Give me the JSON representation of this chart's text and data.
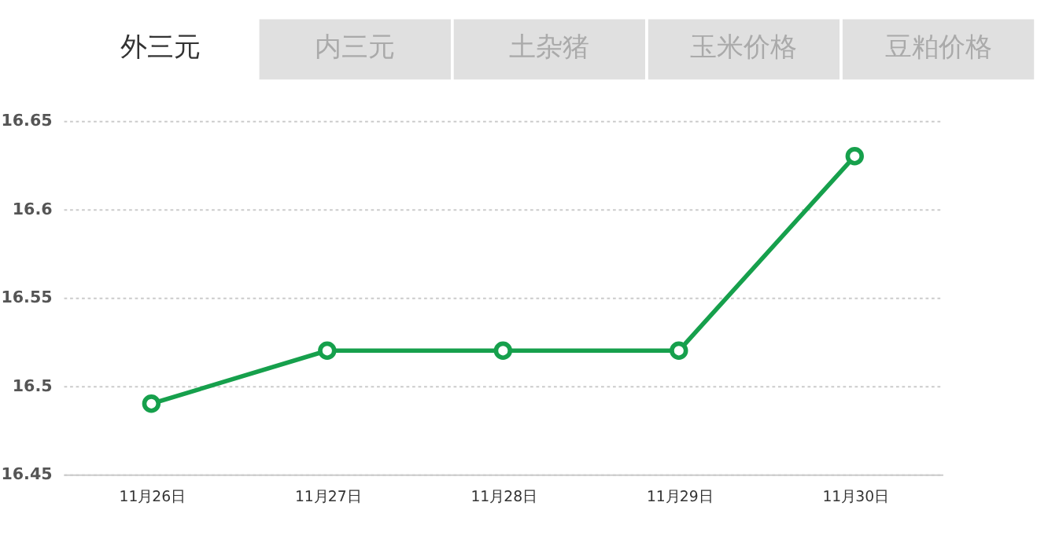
{
  "chart_data": {
    "type": "line",
    "annotations": [
      "外三元",
      "内三元",
      "土杂猪",
      "玉米价格",
      "豆粕价格"
    ],
    "categories": [
      "11月26日",
      "11月27日",
      "11月28日",
      "11月29日",
      "11月30日"
    ],
    "series": [
      {
        "color": "#16a04c",
        "values": [
          16.49,
          16.52,
          16.52,
          16.52,
          16.63
        ]
      }
    ],
    "ylim": [
      16.45,
      16.65
    ],
    "yticks": [
      16.45,
      {
        "value": 16.5,
        "label": "16.5"
      },
      16.55,
      {
        "value": 16.6,
        "label": "16.6"
      },
      16.65
    ],
    "grid": "y",
    "marker": "circle",
    "line_style": "solid"
  }
}
